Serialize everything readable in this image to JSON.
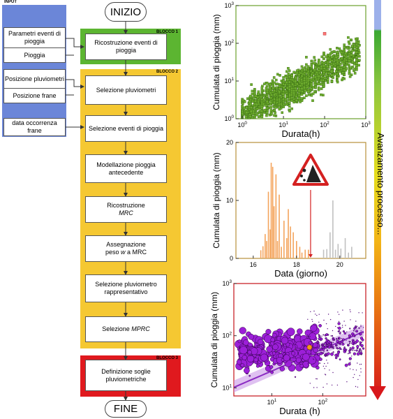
{
  "flow": {
    "start": "INIZIO",
    "end": "FINE",
    "input_label": "INPUT",
    "inputs": [
      "Parametri eventi di pioggia",
      "Pioggia",
      "Posizione pluviometri",
      "Posizione frane",
      "data occorrenza frane"
    ],
    "block1_label": "BLOCCO 1",
    "block2_label": "BLOCCO 2",
    "block3_label": "BLOCCO 3",
    "steps": {
      "s1": "Ricostruzione eventi di pioggia",
      "s2": "Selezione pluviometri",
      "s3": "Selezione eventi di pioggia",
      "s4": "Modellazione pioggia antecedente",
      "s5_a": "Ricostruzione",
      "s5_b": "MRC",
      "s6_a": "Assegnazione",
      "s6_b": "peso",
      "s6_c": "w",
      "s6_d": "a MRC",
      "s7": "Selezione pluviometro rappresentativo",
      "s8_a": "Selezione",
      "s8_b": "MPRC",
      "s9": "Definizione soglie pluviometriche"
    },
    "colors": {
      "block1": "#5cb531",
      "block2": "#f5c832",
      "block3": "#e0191e",
      "input": "#6b86d8"
    }
  },
  "progress_label": "Avanzamento processo...",
  "chart_data": [
    {
      "type": "scatter",
      "title": "",
      "xlabel": "Durata(h)",
      "ylabel": "Cumulata di pioggia (mm)",
      "xscale": "log",
      "yscale": "log",
      "xlim": [
        0.7,
        1000
      ],
      "ylim": [
        1,
        1000
      ],
      "xticks": [
        "10^0",
        "10^1",
        "10^2",
        "10^3"
      ],
      "yticks": [
        "10^0",
        "10^1",
        "10^2",
        "10^3"
      ],
      "marker_color": "#6fae2e",
      "highlight": {
        "x": 100,
        "y": 180,
        "color": "#ff7777"
      }
    },
    {
      "type": "bar",
      "title": "",
      "xlabel": "Data (giorno)",
      "ylabel": "Cumulata di pioggia (mm)",
      "xlim": [
        15.2,
        21.2
      ],
      "ylim": [
        0,
        20
      ],
      "xticks": [
        "16",
        "18",
        "20"
      ],
      "yticks": [
        "0",
        "10",
        "20"
      ],
      "colors": {
        "antecedent": "#f4a45c",
        "after": "#c0c0c0",
        "landslide": "#d42020"
      },
      "landslide_day": 18.65,
      "bars": [
        [
          16.35,
          1.4
        ],
        [
          16.45,
          2.1
        ],
        [
          16.55,
          4.2
        ],
        [
          16.62,
          3.0
        ],
        [
          16.7,
          11.5
        ],
        [
          16.78,
          5.0
        ],
        [
          16.83,
          16.5
        ],
        [
          16.9,
          15.8
        ],
        [
          16.96,
          9.0
        ],
        [
          17.05,
          14.5
        ],
        [
          17.12,
          3.0
        ],
        [
          17.2,
          11.0
        ],
        [
          17.3,
          2.0
        ],
        [
          17.42,
          6.5
        ],
        [
          17.55,
          3.5
        ],
        [
          17.62,
          8.5
        ],
        [
          17.72,
          5.5
        ],
        [
          17.85,
          4.5
        ],
        [
          18.0,
          3.0
        ],
        [
          18.15,
          2.0
        ],
        [
          18.25,
          1.0
        ],
        [
          18.4,
          1.5
        ],
        [
          18.55,
          1.5
        ],
        [
          19.25,
          1.5
        ],
        [
          19.4,
          1.6
        ],
        [
          19.55,
          4.5
        ],
        [
          19.68,
          10.0
        ],
        [
          19.8,
          1.5
        ],
        [
          19.92,
          2.5
        ],
        [
          20.05,
          1.7
        ],
        [
          20.25,
          3.5
        ],
        [
          20.4,
          1.0
        ],
        [
          20.55,
          2.0
        ]
      ]
    },
    {
      "type": "scatter",
      "title": "",
      "xlabel": "Durata (h)",
      "ylabel": "Cumulata di pioggia (mm)",
      "xscale": "log",
      "yscale": "log",
      "xlim": [
        1.8,
        700
      ],
      "ylim": [
        7,
        1000
      ],
      "xticks": [
        "10^1",
        "10^2"
      ],
      "yticks": [
        "10^1",
        "10^2",
        "10^3"
      ],
      "marker_color": "#9c1fd8",
      "highlight": {
        "x": 55,
        "y": 60,
        "color": "#f59a1a"
      },
      "threshold": {
        "alpha": 8.0,
        "gamma": 0.42
      }
    }
  ]
}
